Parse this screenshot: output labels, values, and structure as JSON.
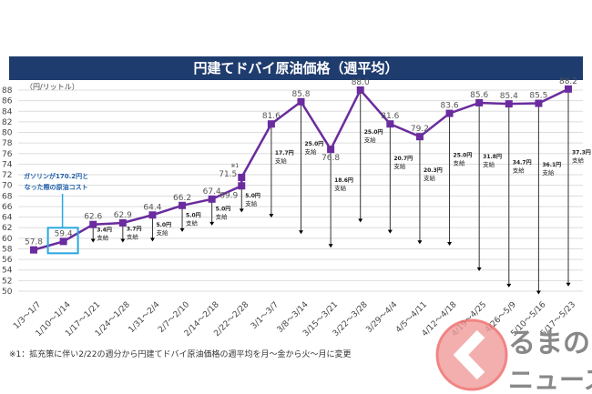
{
  "chart_data": {
    "type": "line",
    "title": "円建てドバイ原油価格（週平均）",
    "ylabel": "（円/リットル）",
    "ylim": [
      50,
      88
    ],
    "yticks": [
      50,
      52,
      54,
      56,
      58,
      60,
      62,
      64,
      66,
      68,
      70,
      72,
      74,
      76,
      78,
      80,
      82,
      84,
      86,
      88
    ],
    "grid": true,
    "categories": [
      "1/3～1/7",
      "1/10～1/14",
      "1/17～1/21",
      "1/24～1/28",
      "1/31～2/4",
      "2/7～2/10",
      "2/14～2/18",
      "2/22～2/28",
      "3/1～3/7",
      "3/8～3/14",
      "3/15～3/21",
      "3/22～3/28",
      "3/29～4/4",
      "4/5～4/11",
      "4/12～4/18",
      "4/19～4/25",
      "4/26～5/9",
      "5/10～5/16",
      "5/17～5/23"
    ],
    "series": [
      {
        "name": "円建てドバイ原油価格",
        "color": "#6a2c9e",
        "values": [
          57.8,
          59.4,
          62.6,
          62.9,
          64.4,
          66.2,
          67.4,
          69.9,
          81.6,
          85.8,
          76.8,
          88.0,
          81.6,
          79.2,
          83.6,
          85.6,
          85.4,
          85.5,
          88.2
        ]
      }
    ],
    "extra_point": {
      "category_index": 7,
      "value": 71.5,
      "marker": "※1"
    },
    "subsidy_unit": "円",
    "subsidy_suffix": "支給",
    "subsidies": [
      null,
      null,
      3.4,
      3.7,
      5.0,
      5.0,
      5.0,
      5.0,
      17.7,
      25.0,
      18.6,
      25.0,
      20.7,
      20.3,
      25.0,
      31.8,
      34.7,
      36.1,
      37.3
    ],
    "annotation": {
      "category_index": 1,
      "lines": [
        "ガソリンが170.2円と",
        "なった際の原油コスト"
      ],
      "color": "#29a8e0"
    },
    "footnote": "※1：拡充策に伴い2/22の週分から円建てドバイ原油価格の週平均を月～金から火～月に変更"
  },
  "watermark": {
    "text": "くるまのニュース",
    "line1": "るまの",
    "line2": "ニュース"
  }
}
